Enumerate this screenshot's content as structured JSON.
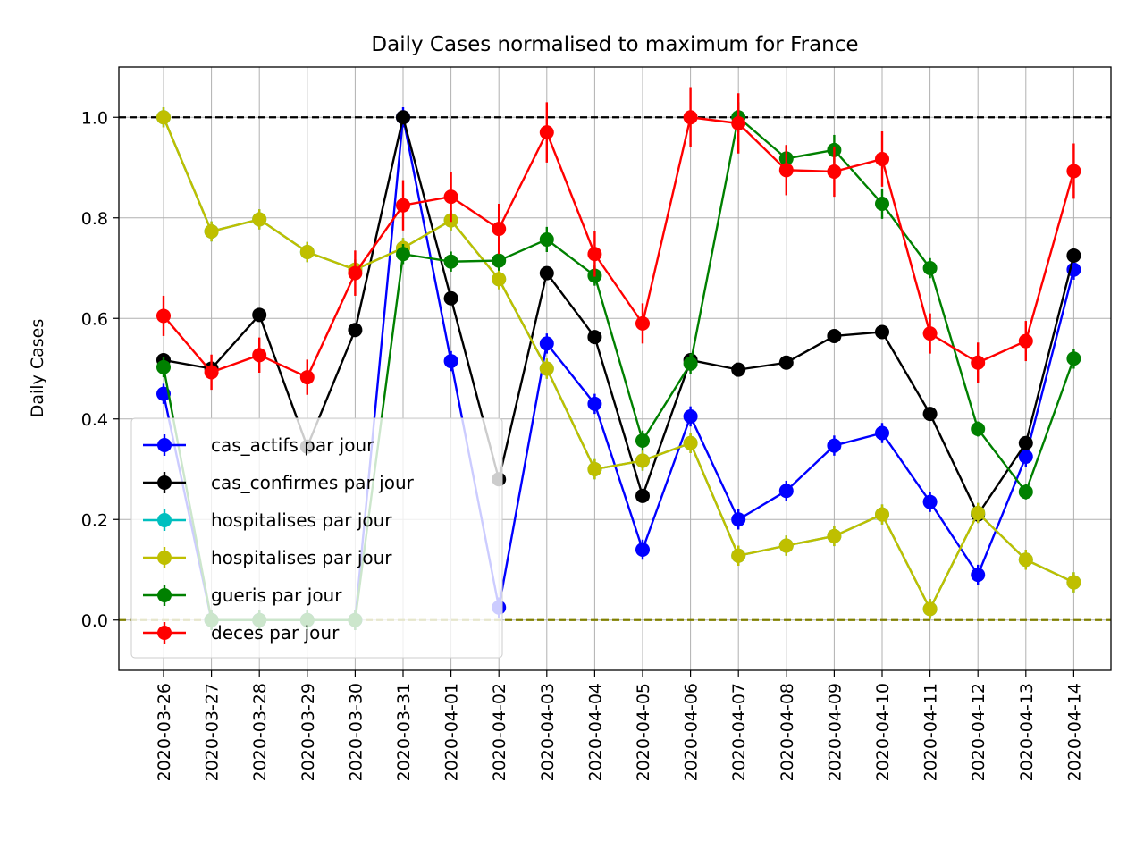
{
  "chart_data": {
    "type": "line",
    "title": "Daily Cases normalised to maximum for France",
    "xlabel": "",
    "ylabel": "Daily Cases",
    "ylim": [
      -0.1,
      1.1
    ],
    "yticks": [
      "0.0",
      "0.2",
      "0.4",
      "0.6",
      "0.8",
      "1.0"
    ],
    "grid": true,
    "legend_position": "lower-left",
    "reference_lines": [
      {
        "y": 1.0,
        "color": "#000000",
        "style": "dashed"
      },
      {
        "y": 0.0,
        "color": "#808000",
        "style": "dashed"
      }
    ],
    "x": [
      "2020-03-26",
      "2020-03-27",
      "2020-03-28",
      "2020-03-29",
      "2020-03-30",
      "2020-03-31",
      "2020-04-01",
      "2020-04-02",
      "2020-04-03",
      "2020-04-04",
      "2020-04-05",
      "2020-04-06",
      "2020-04-07",
      "2020-04-08",
      "2020-04-09",
      "2020-04-10",
      "2020-04-11",
      "2020-04-12",
      "2020-04-13",
      "2020-04-14"
    ],
    "series": [
      {
        "name": "cas_actifs par jour",
        "color": "#0000ff",
        "values": [
          0.45,
          0.0,
          0.0,
          0.0,
          0.0,
          1.0,
          0.515,
          0.025,
          0.55,
          0.43,
          0.14,
          0.405,
          0.2,
          0.257,
          0.347,
          0.372,
          0.235,
          0.09,
          0.325,
          0.697
        ],
        "errors": [
          0.02,
          0.02,
          0.02,
          0.02,
          0.02,
          0.02,
          0.02,
          0.02,
          0.02,
          0.02,
          0.02,
          0.02,
          0.02,
          0.02,
          0.02,
          0.02,
          0.02,
          0.02,
          0.02,
          0.02
        ]
      },
      {
        "name": "cas_confirmes par jour",
        "color": "#000000",
        "values": [
          0.517,
          0.5,
          0.607,
          0.345,
          0.577,
          1.0,
          0.64,
          0.28,
          0.69,
          0.563,
          0.247,
          0.517,
          0.498,
          0.512,
          0.565,
          0.573,
          0.41,
          0.21,
          0.352,
          0.725
        ],
        "errors": [
          0.01,
          0.01,
          0.01,
          0.01,
          0.01,
          0.01,
          0.01,
          0.01,
          0.01,
          0.01,
          0.01,
          0.01,
          0.01,
          0.01,
          0.01,
          0.01,
          0.01,
          0.01,
          0.01,
          0.01
        ]
      },
      {
        "name": "hospitalises par jour",
        "color": "#00bfbf",
        "values": [
          1.0,
          0.773,
          0.797,
          0.732,
          0.697,
          0.74,
          0.795,
          0.678,
          0.5,
          0.3,
          0.317,
          0.352,
          0.128,
          0.148,
          0.167,
          0.21,
          0.022,
          0.213,
          0.12,
          0.075
        ],
        "errors": [
          0.02,
          0.02,
          0.02,
          0.02,
          0.02,
          0.02,
          0.02,
          0.02,
          0.02,
          0.02,
          0.02,
          0.02,
          0.02,
          0.02,
          0.02,
          0.02,
          0.02,
          0.02,
          0.02,
          0.02
        ]
      },
      {
        "name": "hospitalises par jour",
        "color": "#bfbf00",
        "values": [
          1.0,
          0.773,
          0.797,
          0.732,
          0.697,
          0.74,
          0.795,
          0.678,
          0.5,
          0.3,
          0.317,
          0.352,
          0.128,
          0.148,
          0.167,
          0.21,
          0.022,
          0.213,
          0.12,
          0.075
        ],
        "errors": [
          0.02,
          0.02,
          0.02,
          0.02,
          0.02,
          0.02,
          0.02,
          0.02,
          0.02,
          0.02,
          0.02,
          0.02,
          0.02,
          0.02,
          0.02,
          0.02,
          0.02,
          0.02,
          0.02,
          0.02
        ]
      },
      {
        "name": "gueris par jour",
        "color": "#008000",
        "values": [
          0.503,
          0.0,
          0.0,
          0.0,
          0.0,
          0.728,
          0.713,
          0.715,
          0.757,
          0.685,
          0.357,
          0.51,
          1.0,
          0.918,
          0.935,
          0.828,
          0.7,
          0.38,
          0.255,
          0.52
        ],
        "errors": [
          0.02,
          0.02,
          0.02,
          0.02,
          0.02,
          0.02,
          0.02,
          0.02,
          0.025,
          0.02,
          0.02,
          0.02,
          0.03,
          0.025,
          0.03,
          0.03,
          0.02,
          0.015,
          0.015,
          0.02
        ]
      },
      {
        "name": "deces par jour",
        "color": "#ff0000",
        "values": [
          0.605,
          0.493,
          0.527,
          0.483,
          0.69,
          0.825,
          0.842,
          0.778,
          0.97,
          0.728,
          0.59,
          1.0,
          0.988,
          0.895,
          0.892,
          0.917,
          0.57,
          0.512,
          0.555,
          0.893
        ],
        "errors": [
          0.04,
          0.035,
          0.035,
          0.035,
          0.045,
          0.05,
          0.05,
          0.05,
          0.06,
          0.045,
          0.04,
          0.06,
          0.06,
          0.05,
          0.05,
          0.055,
          0.04,
          0.04,
          0.04,
          0.055
        ]
      }
    ]
  }
}
